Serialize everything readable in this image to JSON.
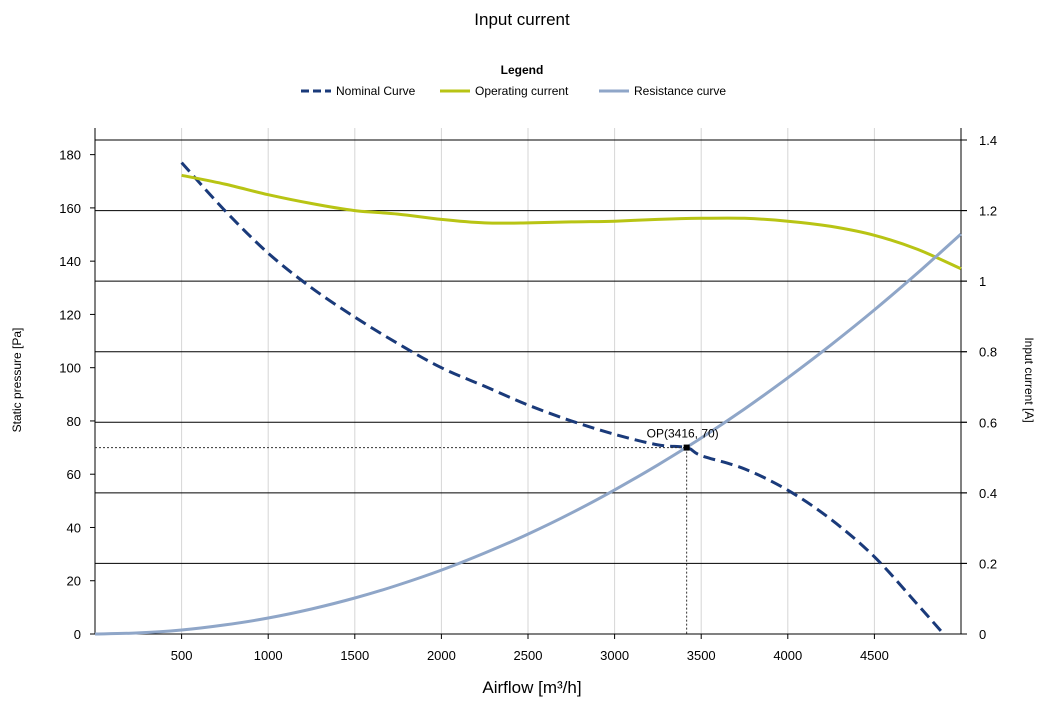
{
  "chart_data": {
    "type": "line",
    "title": "Input current",
    "legend": {
      "title": "Legend",
      "placement": "top-center",
      "entries": [
        {
          "label": "Nominal Curve",
          "color": "#1a3a7a",
          "style": "dashed"
        },
        {
          "label": "Operating current",
          "color": "#b8c414",
          "style": "solid"
        },
        {
          "label": "Resistance curve",
          "color": "#8fa6c8",
          "style": "solid"
        }
      ]
    },
    "xlabel": "Airflow [m³/h]",
    "ylabel": "Static pressure [Pa]",
    "y2label": "Input current [A]",
    "xlim": [
      0,
      5000
    ],
    "ylim": [
      0,
      190
    ],
    "y2lim": [
      0,
      1.4
    ],
    "x_ticks": [
      500,
      1000,
      1500,
      2000,
      2500,
      3000,
      3500,
      4000,
      4500
    ],
    "y_ticks": [
      0,
      20,
      40,
      60,
      80,
      100,
      120,
      140,
      160,
      180
    ],
    "y2_ticks": [
      "0",
      "0.2",
      "0.4",
      "0.6",
      "0.8",
      "1",
      "1.2",
      "1.4"
    ],
    "grid": true,
    "series": [
      {
        "name": "Nominal Curve",
        "axis": "left",
        "x": [
          500,
          750,
          1000,
          1250,
          1500,
          1750,
          2000,
          2250,
          2500,
          2750,
          3000,
          3250,
          3416,
          3500,
          3750,
          4000,
          4250,
          4500,
          4750,
          4900
        ],
        "y": [
          177,
          159,
          143,
          130,
          119,
          109,
          100,
          93,
          86,
          80,
          75,
          71,
          70,
          67,
          62,
          54,
          43,
          29,
          11,
          0
        ]
      },
      {
        "name": "Operating current",
        "axis": "right",
        "x": [
          500,
          750,
          1000,
          1250,
          1500,
          1750,
          2000,
          2250,
          2500,
          2750,
          3000,
          3250,
          3500,
          3750,
          4000,
          4250,
          4500,
          4750,
          5000
        ],
        "y": [
          1.3,
          1.275,
          1.245,
          1.22,
          1.2,
          1.19,
          1.175,
          1.165,
          1.165,
          1.168,
          1.17,
          1.175,
          1.178,
          1.178,
          1.17,
          1.155,
          1.13,
          1.09,
          1.035
        ]
      },
      {
        "name": "Resistance curve",
        "axis": "left",
        "x": [
          0,
          250,
          500,
          750,
          1000,
          1250,
          1500,
          1750,
          2000,
          2250,
          2500,
          2750,
          3000,
          3250,
          3500,
          3750,
          4000,
          4250,
          4500,
          4750,
          5000
        ],
        "y": [
          0,
          0.4,
          1.5,
          3.4,
          6.0,
          9.4,
          13.5,
          18.4,
          24.0,
          30.4,
          37.5,
          45.4,
          54.1,
          63.5,
          73.6,
          84.5,
          96.2,
          108.6,
          121.7,
          135.6,
          150.2
        ]
      }
    ],
    "operating_point": {
      "label": "OP(3416, 70)",
      "x": 3416,
      "y": 70
    }
  }
}
